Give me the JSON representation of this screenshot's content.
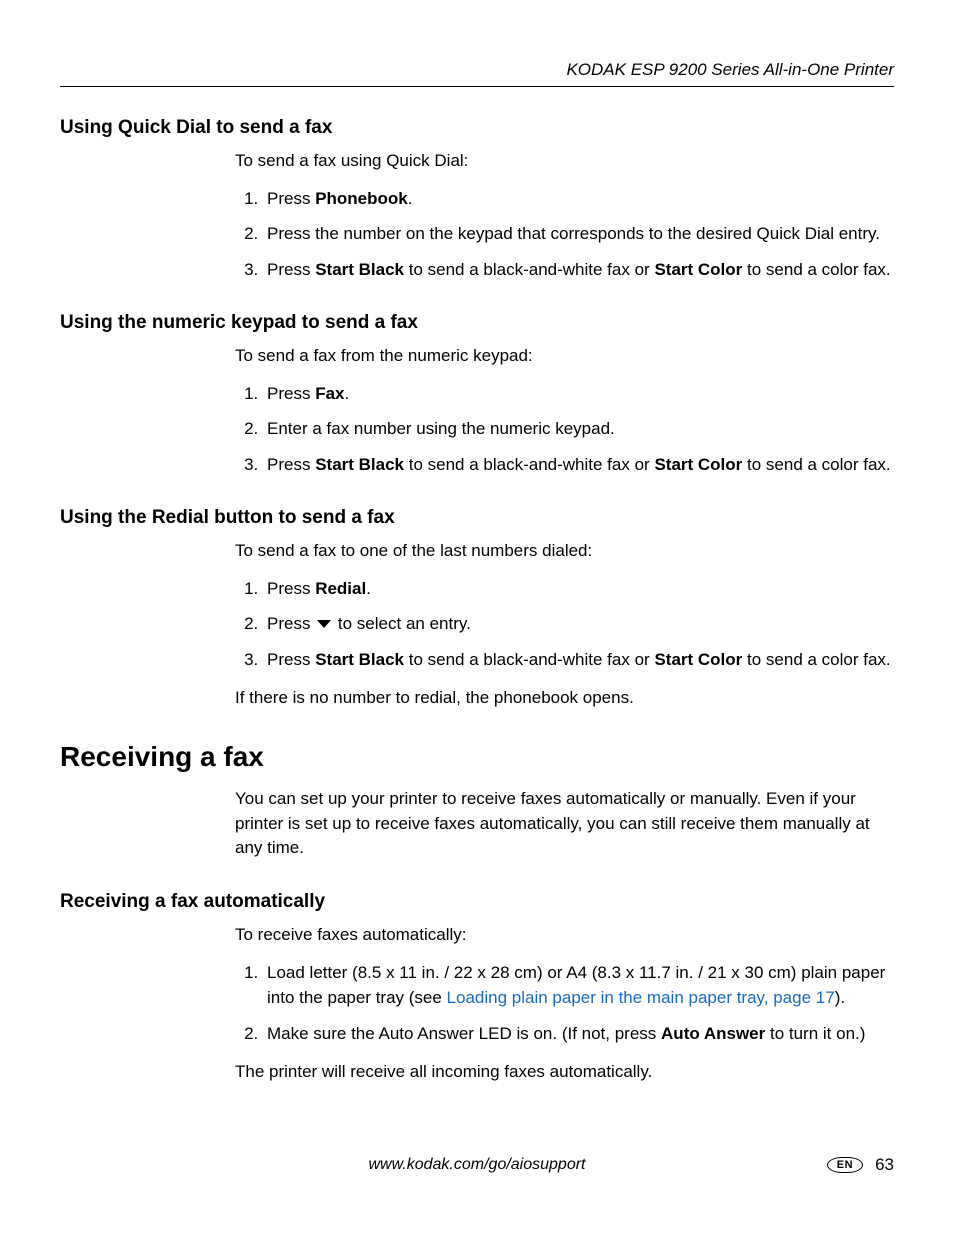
{
  "header": {
    "title": "KODAK ESP 9200 Series All-in-One Printer"
  },
  "sections": {
    "quickdial": {
      "heading": "Using Quick Dial to send a fax",
      "intro": "To send a fax using Quick Dial:",
      "step1_a": "Press ",
      "step1_b": "Phonebook",
      "step1_c": ".",
      "step2": "Press the number on the keypad that corresponds to the desired Quick Dial entry.",
      "step3_a": "Press ",
      "step3_b": "Start Black",
      "step3_c": " to send a black-and-white fax or ",
      "step3_d": "Start Color",
      "step3_e": " to send a color fax."
    },
    "numeric": {
      "heading": "Using the numeric keypad to send a fax",
      "intro": "To send a fax from the numeric keypad:",
      "step1_a": "Press ",
      "step1_b": "Fax",
      "step1_c": ".",
      "step2": "Enter a fax number using the numeric keypad.",
      "step3_a": "Press ",
      "step3_b": "Start Black",
      "step3_c": " to send a black-and-white fax or ",
      "step3_d": "Start Color",
      "step3_e": " to send a color fax."
    },
    "redial": {
      "heading": "Using the Redial button to send a fax",
      "intro": "To send a fax to one of the last numbers dialed:",
      "step1_a": "Press ",
      "step1_b": "Redial",
      "step1_c": ".",
      "step2_a": "Press ",
      "step2_b": " to select an entry.",
      "step3_a": "Press ",
      "step3_b": "Start Black",
      "step3_c": " to send a black-and-white fax or ",
      "step3_d": "Start Color",
      "step3_e": " to send a color fax.",
      "note": "If there is no number to redial, the phonebook opens."
    },
    "receiving": {
      "heading": "Receiving a fax",
      "intro": "You can set up your printer to receive faxes automatically or manually. Even if your printer is set up to receive faxes automatically, you can still receive them manually at any time."
    },
    "receiving_auto": {
      "heading": "Receiving a fax automatically",
      "intro": "To receive faxes automatically:",
      "step1_a": "Load letter (8.5 x 11 in. / 22 x 28 cm) or A4 (8.3 x 11.7 in. / 21 x 30 cm) plain paper into the paper tray (see ",
      "step1_link": "Loading plain paper in the main paper tray, page 17",
      "step1_b": ").",
      "step2_a": "Make sure the Auto Answer LED is on. (If not, press ",
      "step2_b": "Auto Answer",
      "step2_c": " to turn it on.)",
      "note": "The printer will receive all incoming faxes automatically."
    }
  },
  "footer": {
    "url": "www.kodak.com/go/aiosupport",
    "lang": "EN",
    "page": "63"
  },
  "colors": {
    "link": "#1a6bbf",
    "text": "#000000",
    "background": "#ffffff"
  }
}
